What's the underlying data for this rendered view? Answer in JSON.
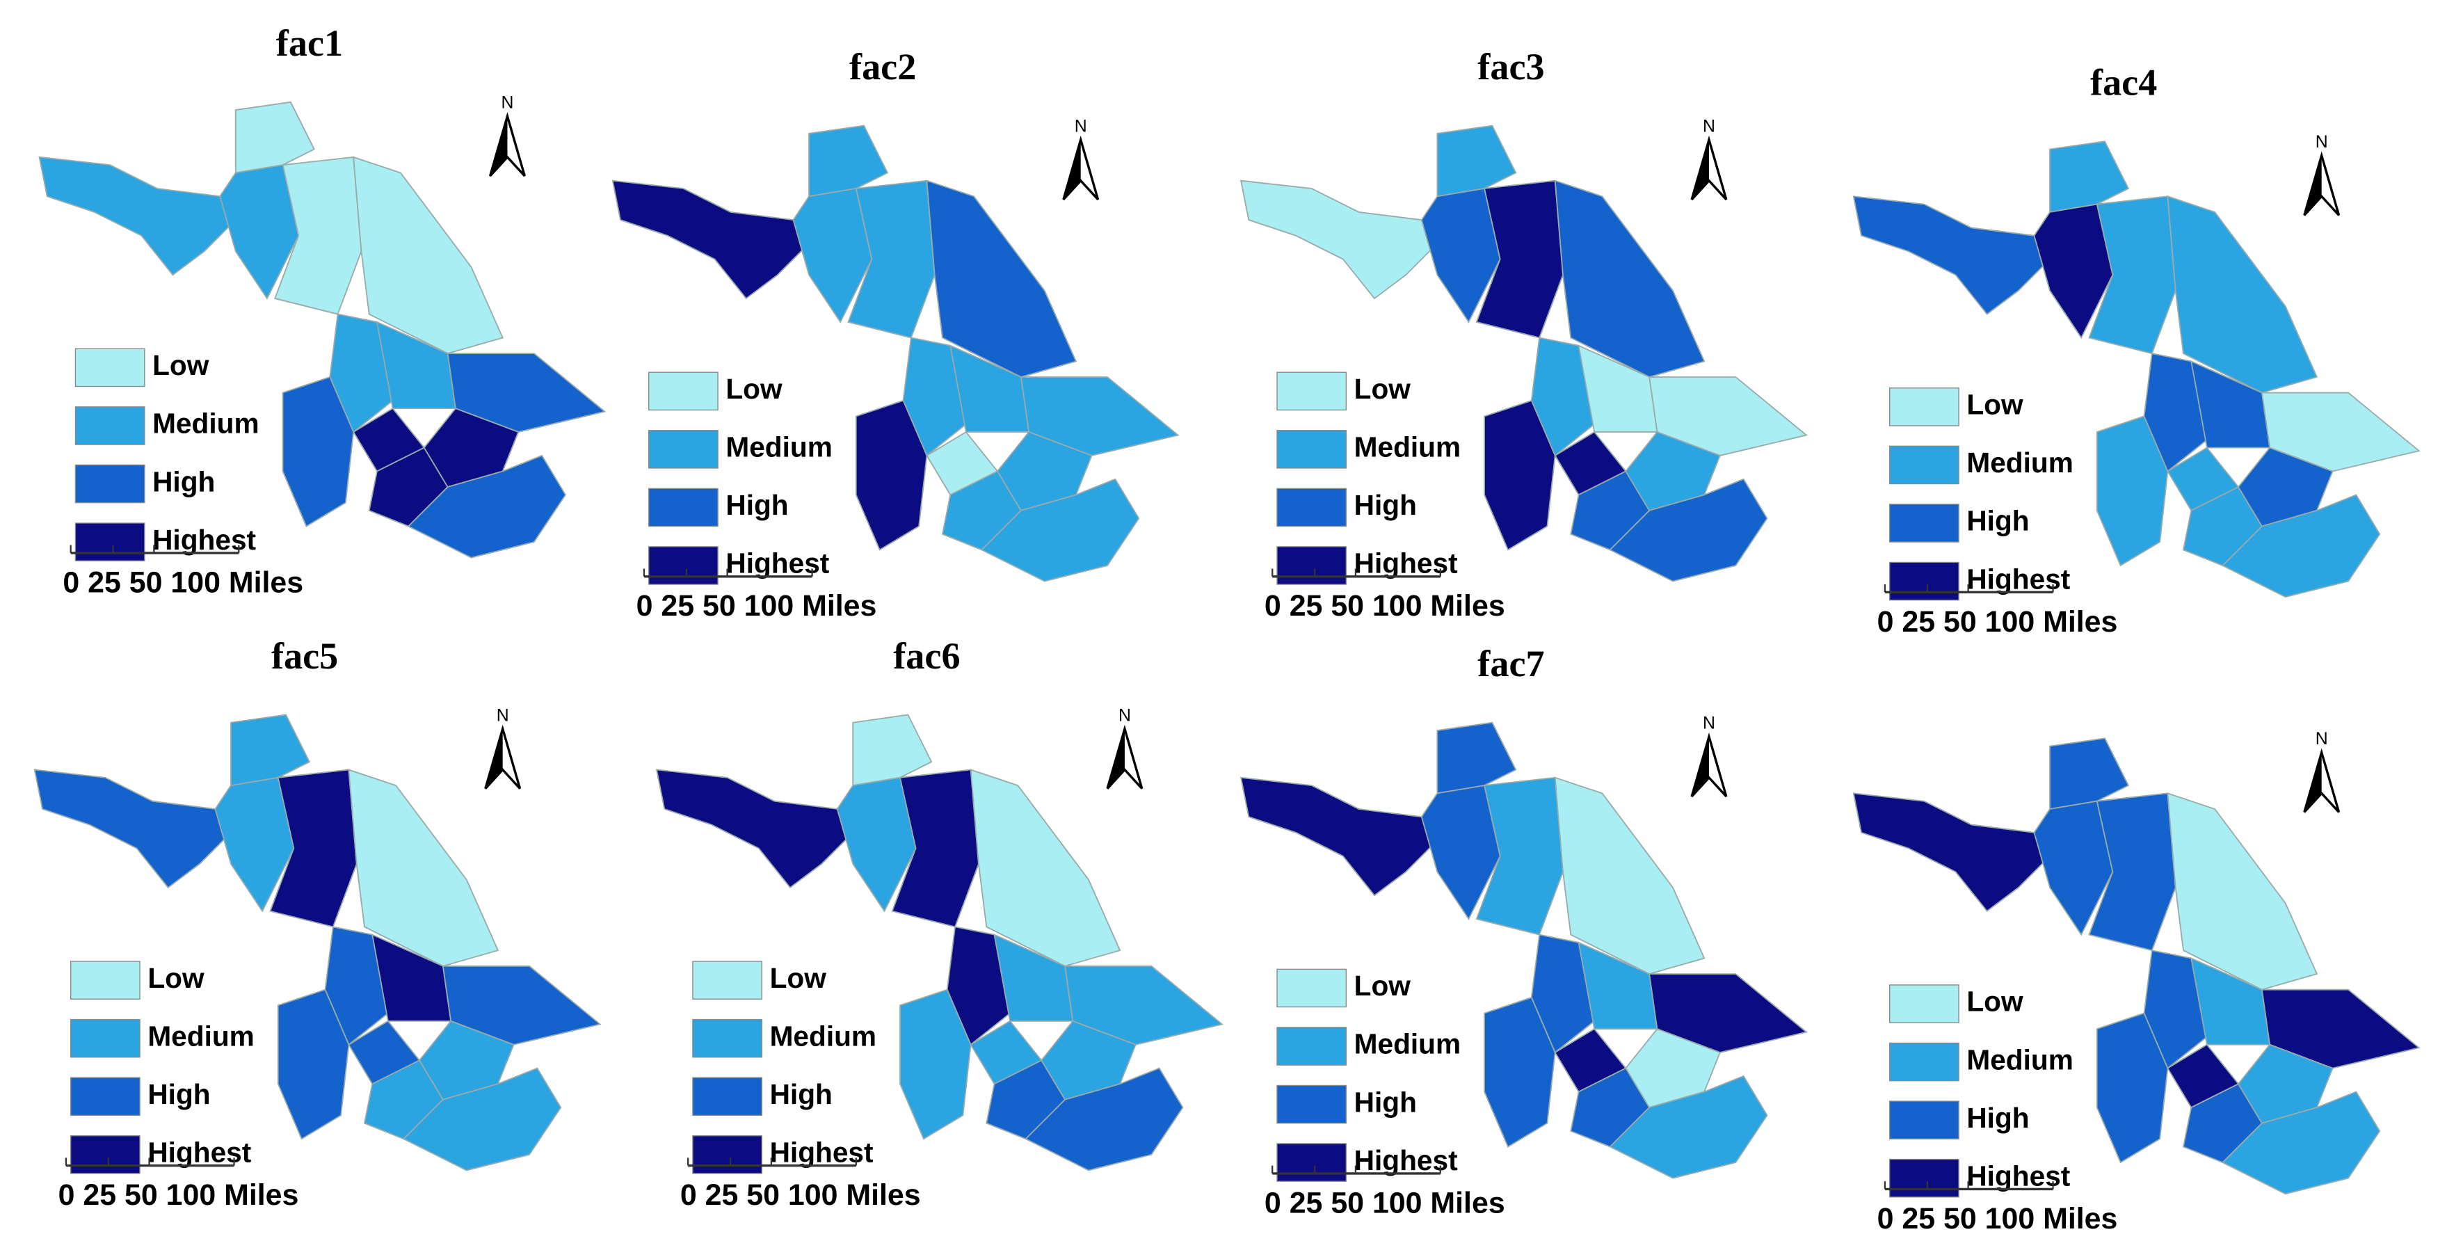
{
  "panels": [
    {
      "title": "fac1",
      "levels": [
        1,
        0,
        1,
        0,
        0,
        1,
        1,
        2,
        2,
        3,
        3,
        3,
        2
      ]
    },
    {
      "title": "fac2",
      "levels": [
        3,
        1,
        1,
        1,
        2,
        1,
        1,
        1,
        3,
        0,
        1,
        1,
        1
      ]
    },
    {
      "title": "fac3",
      "levels": [
        0,
        1,
        2,
        3,
        2,
        1,
        0,
        0,
        3,
        3,
        2,
        1,
        2
      ]
    },
    {
      "title": "fac4",
      "levels": [
        2,
        1,
        3,
        1,
        1,
        2,
        2,
        0,
        1,
        1,
        1,
        2,
        1
      ]
    },
    {
      "title": "fac5",
      "levels": [
        2,
        1,
        1,
        3,
        0,
        2,
        3,
        2,
        2,
        2,
        1,
        1,
        1
      ]
    },
    {
      "title": "fac6",
      "levels": [
        3,
        0,
        1,
        3,
        0,
        3,
        1,
        1,
        1,
        1,
        2,
        1,
        2
      ]
    },
    {
      "title": "fac7",
      "levels": [
        3,
        2,
        2,
        1,
        0,
        2,
        1,
        3,
        2,
        3,
        2,
        0,
        1
      ]
    },
    {
      "levels": [
        3,
        2,
        2,
        2,
        0,
        2,
        1,
        3,
        2,
        3,
        2,
        1,
        1
      ]
    }
  ],
  "legend": [
    {
      "label": "Low",
      "color": "#a8eef2"
    },
    {
      "label": "Medium",
      "color": "#2ba4e2"
    },
    {
      "label": "High",
      "color": "#1462cc"
    },
    {
      "label": "Highest",
      "color": "#0b0b82"
    }
  ],
  "scale_bar": "0 25 50 100 Miles",
  "north": "N"
}
